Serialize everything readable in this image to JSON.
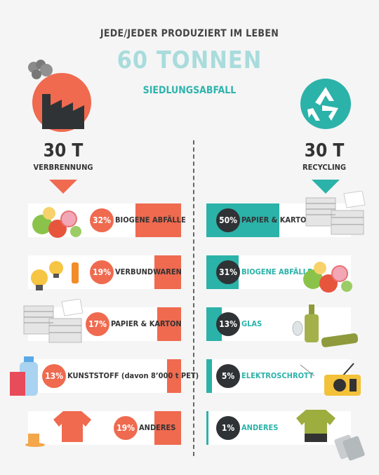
{
  "header": {
    "top": "JEDE/JEDER PRODUZIERT IM LEBEN",
    "big": "60 TONNEN",
    "sub": "SIEDLUNGSABFALL"
  },
  "colors": {
    "verbrennung": "#ef6a4f",
    "recycling": "#2bb2a9",
    "circle_dark": "#2f3336",
    "headline_light": "#a9dcdc"
  },
  "left": {
    "amount": "30 T",
    "label": "VERBRENNUNG",
    "icon": "factory-icon"
  },
  "right": {
    "amount": "30 T",
    "label": "RECYCLING",
    "icon": "recycling-icon"
  },
  "chart_data": [
    {
      "type": "bar",
      "title": "VERBRENNUNG",
      "categories": [
        "BIOGENE ABFÄLLE",
        "VERBUNDWAREN",
        "PAPIER & KARTON",
        "KUNSTSTOFF (davon 8’000 t PET)",
        "ANDERES"
      ],
      "values": [
        32,
        19,
        17,
        13,
        19
      ],
      "labels": [
        "32%",
        "19%",
        "17%",
        "13%",
        "19%"
      ],
      "icons": [
        "vegetables-icon",
        "lightbulb-lighter-icon",
        "paper-stack-icon",
        "plastic-bottle-icon",
        "tshirt-icon"
      ]
    },
    {
      "type": "bar",
      "title": "RECYCLING",
      "categories": [
        "PAPIER & KARTON",
        "BIOGENE ABFÄLLE",
        "GLAS",
        "ELEKTROSCHROTT",
        "ANDERES"
      ],
      "values": [
        50,
        31,
        13,
        5,
        1
      ],
      "labels": [
        "50%",
        "31%",
        "13%",
        "5%",
        "1%"
      ],
      "icons": [
        "paper-stack-icon",
        "vegetables-icon",
        "glass-bottles-icon",
        "radio-icon",
        "tshirt-icon"
      ]
    }
  ]
}
